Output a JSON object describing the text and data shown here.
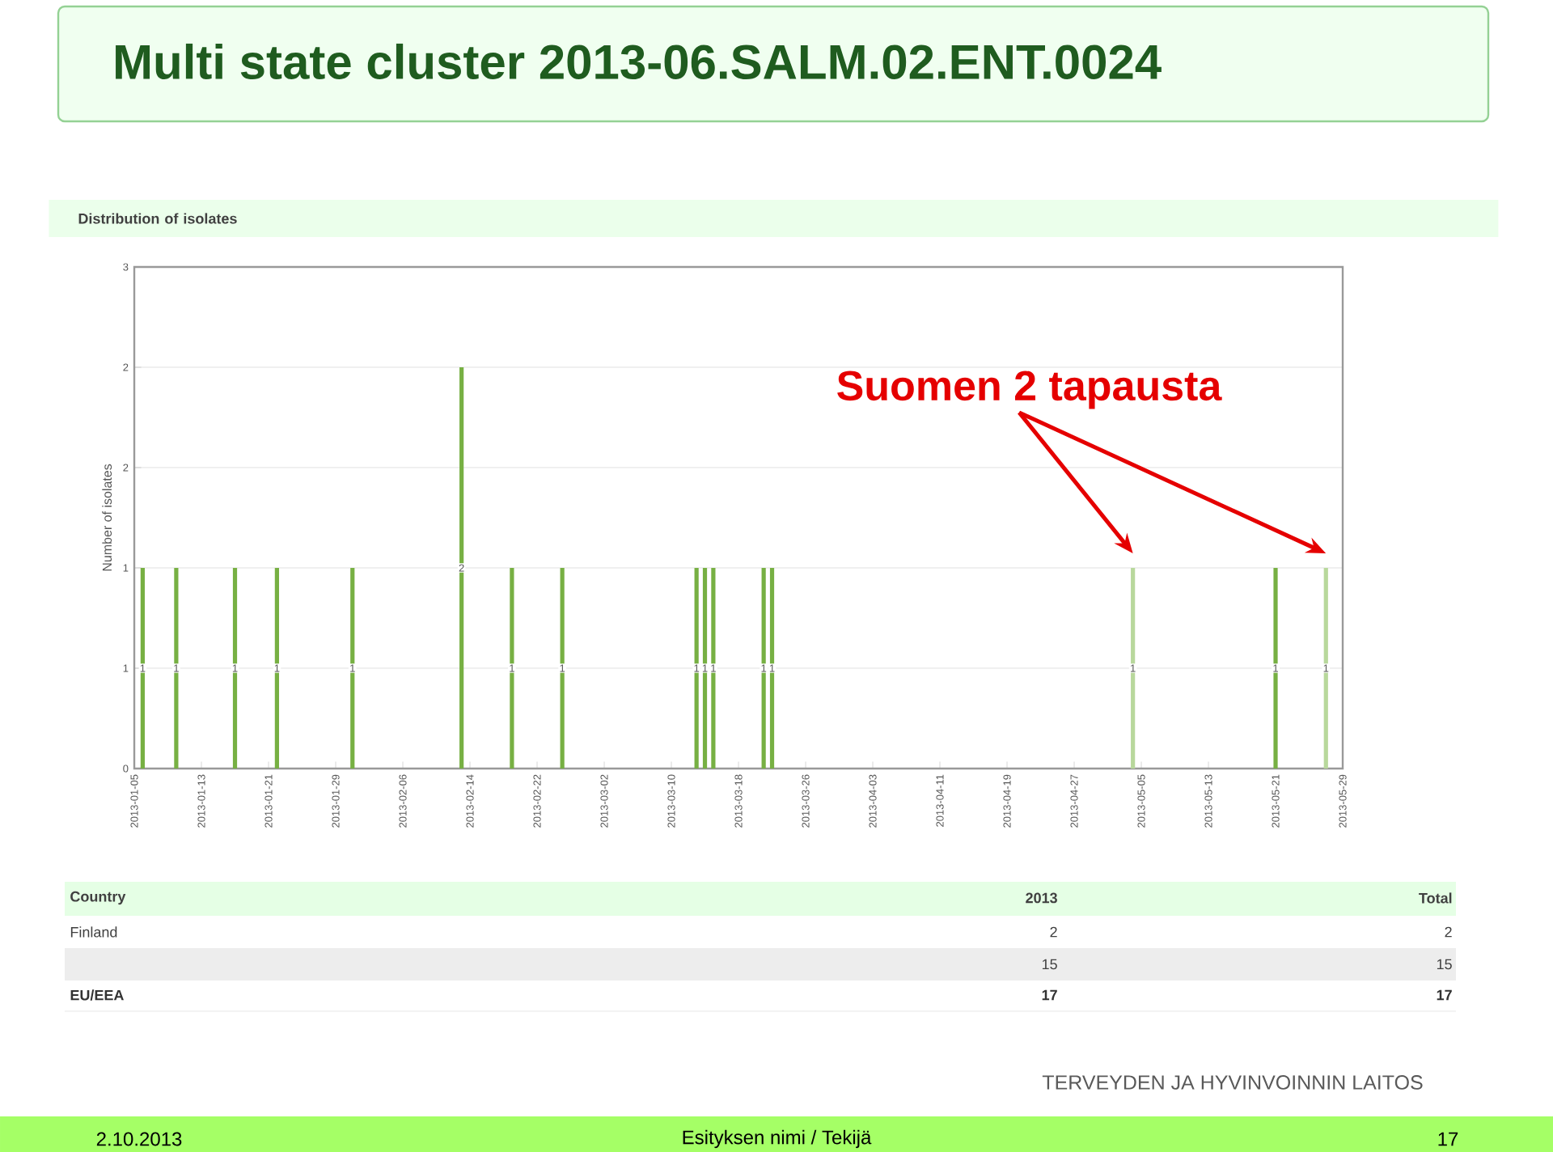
{
  "chart_data": {
    "type": "bar",
    "title": "Multi state cluster  2013-06.SALM.02.ENT.0024",
    "subtitle": "Distribution of isolates",
    "ylabel": "Number of isolates",
    "xlim": [
      "2013-01-05",
      "2013-05-29"
    ],
    "xticks": [
      "2013-01-05",
      "2013-01-13",
      "2013-01-21",
      "2013-01-29",
      "2013-02-06",
      "2013-02-14",
      "2013-02-22",
      "2013-03-02",
      "2013-03-10",
      "2013-03-18",
      "2013-03-26",
      "2013-04-03",
      "2013-04-11",
      "2013-04-19",
      "2013-04-27",
      "2013-05-05",
      "2013-05-13",
      "2013-05-21",
      "2013-05-29"
    ],
    "ylim": [
      0,
      2.5
    ],
    "yticks": [
      0,
      {
        "value": 0.5,
        "label": "1"
      },
      1,
      {
        "value": 1.5,
        "label": "2"
      },
      2,
      {
        "value": 2.5,
        "label": "3"
      }
    ],
    "grid": "y",
    "data_labels": true,
    "series": [
      {
        "color": "#77b043",
        "x": [
          "2013-01-06",
          "2013-01-10",
          "2013-01-17",
          "2013-01-22",
          "2013-01-31",
          "2013-02-13",
          "2013-02-19",
          "2013-02-25",
          "2013-03-13",
          "2013-03-14",
          "2013-03-15",
          "2013-03-21",
          "2013-03-22",
          "2013-05-21"
        ],
        "values": [
          1,
          1,
          1,
          1,
          1,
          2,
          1,
          1,
          1,
          1,
          1,
          1,
          1,
          1
        ]
      },
      {
        "color": "#b8d89c",
        "x": [
          "2013-05-04",
          "2013-05-27"
        ],
        "values": [
          1,
          1
        ]
      }
    ],
    "annotations": [
      "Suomen 2 tapausta",
      "Country",
      "2013",
      "Total",
      "Finland",
      "2",
      "2",
      "15",
      "15",
      "EU/EEA",
      "17",
      "17",
      "TERVEYDEN JA HYVINVOINNIN LAITOS",
      "2.10.2013",
      "Esityksen nimi / Tekijä",
      "17"
    ]
  }
}
